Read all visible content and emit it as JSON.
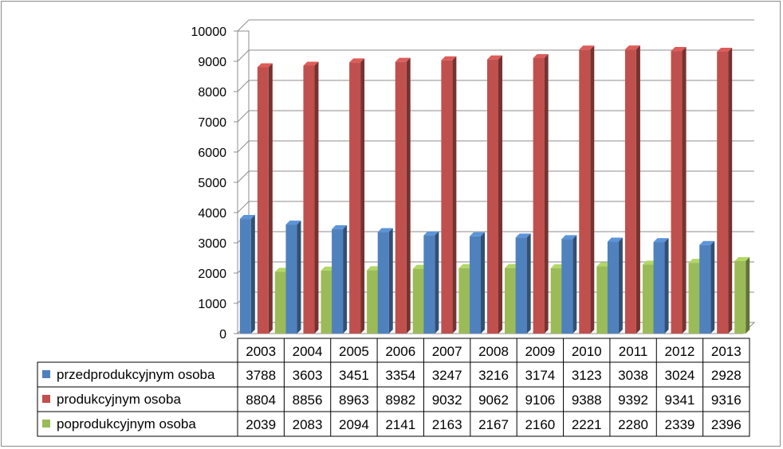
{
  "chart_data": {
    "type": "bar",
    "style": "3d-clustered-column-with-data-table",
    "categories": [
      "2003",
      "2004",
      "2005",
      "2006",
      "2007",
      "2008",
      "2009",
      "2010",
      "2011",
      "2012",
      "2013"
    ],
    "series": [
      {
        "name": "przedprodukcyjnym osoba",
        "color": "#4f81bd",
        "values": [
          3788,
          3603,
          3451,
          3354,
          3247,
          3216,
          3174,
          3123,
          3038,
          3024,
          2928
        ]
      },
      {
        "name": "produkcyjnym osoba",
        "color": "#c0504d",
        "values": [
          8804,
          8856,
          8963,
          8982,
          9032,
          9062,
          9106,
          9388,
          9392,
          9341,
          9316
        ]
      },
      {
        "name": "poprodukcyjnym osoba",
        "color": "#9bbb59",
        "values": [
          2039,
          2083,
          2094,
          2141,
          2163,
          2167,
          2160,
          2221,
          2280,
          2339,
          2396
        ]
      }
    ],
    "ylim": [
      0,
      10000
    ],
    "yticks": [
      0,
      1000,
      2000,
      3000,
      4000,
      5000,
      6000,
      7000,
      8000,
      9000,
      10000
    ],
    "grid": true,
    "legend": "data-table"
  }
}
